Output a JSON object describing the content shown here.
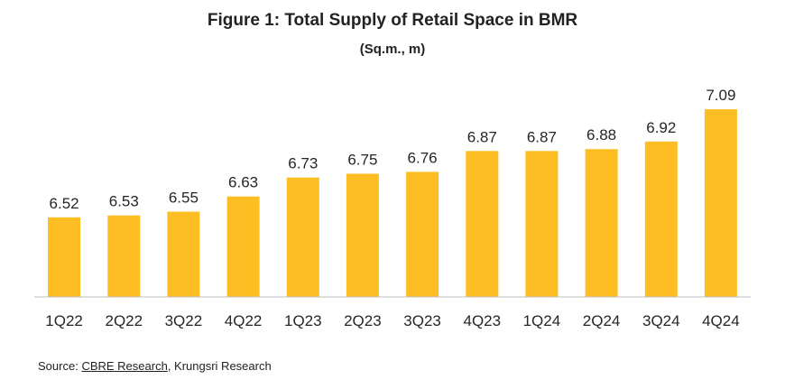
{
  "chart_data": {
    "type": "bar",
    "title": "Figure 1: Total Supply of Retail Space in BMR",
    "subtitle": "(Sq.m., m)",
    "categories": [
      "1Q22",
      "2Q22",
      "3Q22",
      "4Q22",
      "1Q23",
      "2Q23",
      "3Q23",
      "4Q23",
      "1Q24",
      "2Q24",
      "3Q24",
      "4Q24"
    ],
    "values": [
      6.52,
      6.53,
      6.55,
      6.63,
      6.73,
      6.75,
      6.76,
      6.87,
      6.87,
      6.88,
      6.92,
      7.09
    ],
    "value_labels": [
      "6.52",
      "6.53",
      "6.55",
      "6.63",
      "6.73",
      "6.75",
      "6.76",
      "6.87",
      "6.87",
      "6.88",
      "6.92",
      "7.09"
    ],
    "xlabel": "",
    "ylabel": "",
    "ylim": [
      6.1,
      7.1
    ],
    "grid": false,
    "legend": "none",
    "bar_color": "#FDBE23"
  },
  "source": {
    "prefix": "Source:",
    "link_text": "CBRE Research",
    "suffix": ", Krungsri Research"
  }
}
